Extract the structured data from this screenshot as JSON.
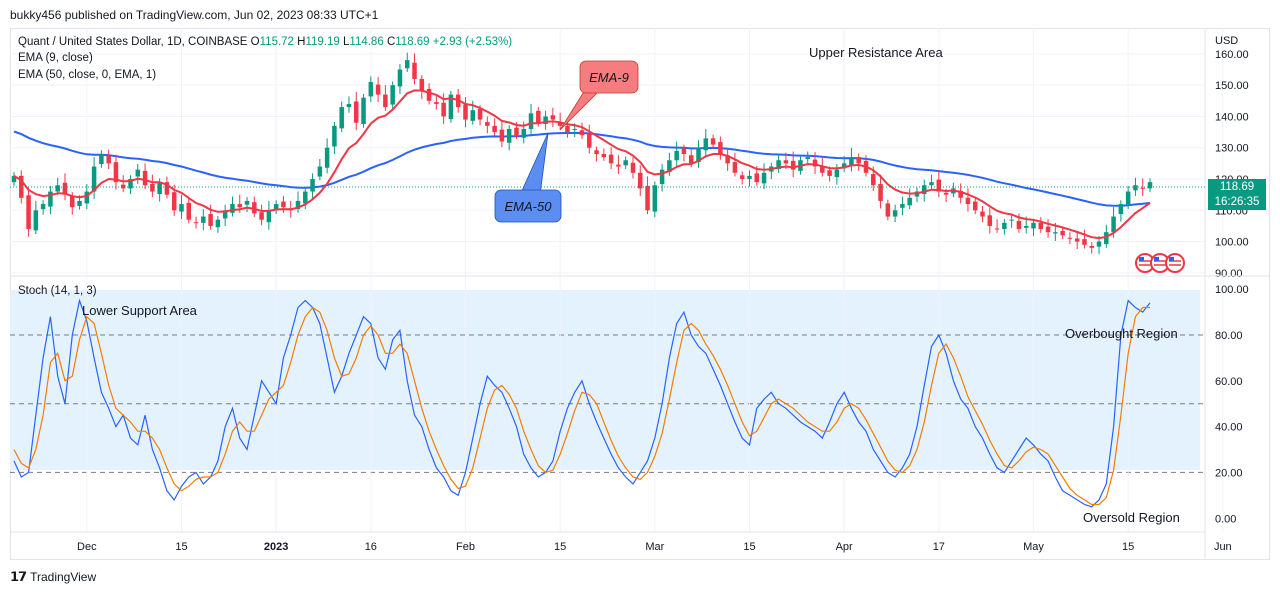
{
  "header": {
    "publisher": "bukky456 published on TradingView.com, Jun 02, 2023 08:33 UTC+1"
  },
  "legend": {
    "symbol": "Quant / United States Dollar, 1D, COINBASE",
    "open_label": "O",
    "open": "115.72",
    "high_label": "H",
    "high": "119.19",
    "low_label": "L",
    "low": "114.86",
    "close_label": "C",
    "close": "118.69",
    "change": "+2.93 (+2.53%)",
    "ema9_label": "EMA (9, close)",
    "ema50_label": "EMA (50, close, 0, EMA, 1)",
    "stoch_label": "Stoch (14, 1, 3)"
  },
  "price_tag": {
    "price": "118.69",
    "countdown": "16:26:35"
  },
  "annotations": {
    "upper_resistance": "Upper Resistance Area",
    "lower_support": "Lower Support Area",
    "overbought": "Overbought Region",
    "oversold": "Oversold Region",
    "ema9_callout": "EMA-9",
    "ema50_callout": "EMA-50"
  },
  "footer": {
    "brand": "TradingView"
  },
  "colors": {
    "up": "#089981",
    "down": "#f23645",
    "ema9": "#f23645",
    "ema50": "#2962ff",
    "stoch_k": "#2962ff",
    "stoch_d": "#f57c00",
    "band": "#e3f2fd",
    "ema9_box": "#f77c80",
    "ema50_box": "#5b8ef0"
  },
  "icons": {
    "flags": "us-flag-icon"
  },
  "chart_data": [
    {
      "type": "candlestick",
      "currency": "USD",
      "x_ticks": [
        "Dec",
        "15",
        "2023",
        "16",
        "Feb",
        "15",
        "Mar",
        "15",
        "Apr",
        "17",
        "May",
        "15",
        "Jun"
      ],
      "x_tick_index": [
        10,
        23,
        36,
        49,
        62,
        75,
        88,
        101,
        114,
        127,
        140,
        153,
        166
      ],
      "y_ticks": [
        "160.00",
        "150.00",
        "140.00",
        "130.00",
        "120.00",
        "110.00",
        "100.00",
        "90.00"
      ],
      "y_tick_values": [
        160,
        150,
        140,
        130,
        120,
        110,
        100,
        90
      ],
      "ylim": [
        89,
        167
      ],
      "close": [
        121,
        114,
        104,
        110,
        112,
        116,
        118,
        115,
        111,
        113,
        116,
        124,
        128,
        125,
        119,
        117,
        120,
        123,
        118,
        116,
        119,
        115,
        110,
        112,
        107,
        106,
        108,
        105,
        107,
        110,
        112,
        111,
        113,
        109,
        107,
        110,
        112,
        111,
        110,
        113,
        116,
        120,
        124,
        130,
        137,
        143,
        144,
        138,
        146,
        151,
        147,
        143,
        150,
        155,
        158,
        152,
        148,
        145,
        144,
        140,
        147,
        143,
        139,
        142,
        139,
        137,
        135,
        132,
        136,
        134,
        136,
        141,
        138,
        140,
        139,
        137,
        135,
        136,
        134,
        130,
        128,
        127,
        125,
        124,
        126,
        122,
        117,
        110,
        118,
        123,
        126,
        129,
        128,
        125,
        130,
        133,
        131,
        128,
        125,
        122,
        120,
        121,
        119,
        122,
        124,
        126,
        125,
        123,
        126,
        127,
        124,
        122,
        121,
        123,
        125,
        127,
        125,
        122,
        118,
        113,
        108,
        110,
        112,
        114,
        116,
        118,
        119,
        116,
        115,
        117,
        114,
        112,
        110,
        108,
        105,
        104,
        106,
        107,
        104,
        105,
        106,
        104,
        103,
        103,
        102,
        101,
        100,
        99,
        98,
        100,
        103,
        108,
        112,
        116,
        118,
        117,
        119
      ]
    },
    {
      "type": "line",
      "title": "Stoch (14, 1, 3)",
      "y_ticks": [
        "100.00",
        "80.00",
        "60.00",
        "40.00",
        "20.00",
        "0.00"
      ],
      "y_tick_values": [
        100,
        80,
        60,
        40,
        20,
        0
      ],
      "ylim": [
        -6,
        104
      ],
      "levels": [
        80,
        50,
        20
      ],
      "series": [
        {
          "values": [
            25,
            18,
            20,
            45,
            70,
            88,
            62,
            50,
            80,
            95,
            86,
            70,
            55,
            48,
            40,
            45,
            35,
            32,
            45,
            30,
            22,
            12,
            8,
            14,
            18,
            20,
            15,
            18,
            25,
            40,
            48,
            35,
            30,
            45,
            60,
            55,
            50,
            70,
            80,
            92,
            95,
            92,
            85,
            70,
            55,
            62,
            72,
            80,
            88,
            85,
            70,
            65,
            78,
            82,
            60,
            45,
            40,
            30,
            22,
            18,
            12,
            10,
            20,
            35,
            50,
            62,
            58,
            55,
            48,
            40,
            28,
            22,
            18,
            20,
            25,
            38,
            48,
            55,
            60,
            50,
            42,
            35,
            28,
            22,
            18,
            15,
            20,
            25,
            35,
            50,
            70,
            85,
            90,
            80,
            75,
            72,
            65,
            58,
            50,
            42,
            35,
            32,
            48,
            52,
            55,
            50,
            48,
            45,
            42,
            40,
            38,
            35,
            42,
            50,
            55,
            48,
            42,
            38,
            30,
            25,
            20,
            18,
            22,
            28,
            40,
            58,
            75,
            80,
            72,
            60,
            52,
            48,
            40,
            35,
            28,
            22,
            20,
            25,
            30,
            35,
            32,
            28,
            25,
            18,
            12,
            10,
            8,
            6,
            5,
            8,
            15,
            40,
            80,
            95,
            92,
            90,
            94
          ]
        },
        {
          "values": [
            30,
            24,
            22,
            30,
            45,
            68,
            72,
            60,
            62,
            78,
            88,
            85,
            72,
            58,
            48,
            45,
            42,
            38,
            38,
            35,
            30,
            22,
            15,
            12,
            14,
            17,
            18,
            18,
            20,
            28,
            38,
            42,
            38,
            38,
            45,
            52,
            55,
            58,
            68,
            80,
            88,
            92,
            90,
            82,
            70,
            62,
            63,
            70,
            80,
            84,
            80,
            72,
            72,
            76,
            72,
            60,
            48,
            38,
            30,
            23,
            17,
            13,
            14,
            22,
            35,
            48,
            56,
            58,
            54,
            48,
            38,
            30,
            23,
            20,
            21,
            28,
            37,
            47,
            55,
            54,
            50,
            42,
            34,
            27,
            22,
            18,
            17,
            20,
            27,
            37,
            52,
            68,
            82,
            85,
            82,
            76,
            71,
            65,
            58,
            50,
            42,
            36,
            38,
            44,
            50,
            52,
            50,
            48,
            45,
            42,
            40,
            38,
            38,
            42,
            48,
            50,
            48,
            43,
            37,
            31,
            25,
            21,
            20,
            23,
            30,
            42,
            58,
            72,
            76,
            70,
            62,
            53,
            47,
            41,
            34,
            28,
            23,
            22,
            25,
            29,
            31,
            30,
            28,
            23,
            18,
            13,
            10,
            8,
            6,
            6,
            9,
            21,
            45,
            72,
            88,
            92,
            92
          ]
        }
      ]
    }
  ]
}
